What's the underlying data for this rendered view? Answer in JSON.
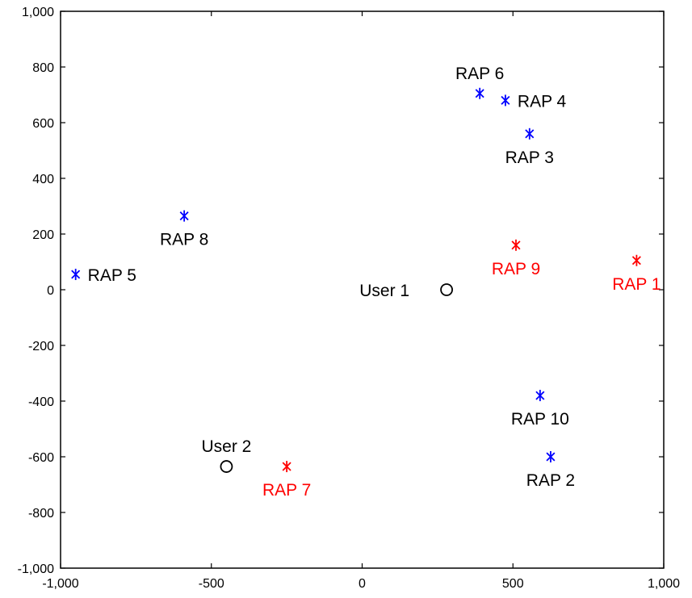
{
  "chart_data": {
    "type": "scatter",
    "title": "",
    "xlabel": "",
    "ylabel": "",
    "xlim": [
      -1000,
      1000
    ],
    "ylim": [
      -1000,
      1000
    ],
    "x_ticks": [
      -1000,
      -500,
      0,
      500,
      1000
    ],
    "y_ticks": [
      -1000,
      -800,
      -600,
      -400,
      -200,
      0,
      200,
      400,
      600,
      800,
      1000
    ],
    "x_tick_labels": [
      "-1,000",
      "-500",
      "0",
      "500",
      "1,000"
    ],
    "y_tick_labels": [
      "-1,000",
      "-800",
      "-600",
      "-400",
      "-200",
      "0",
      "200",
      "400",
      "600",
      "800",
      "1,000"
    ],
    "grid": false,
    "legend": "none",
    "colors": {
      "rap_blue": "#0000ff",
      "rap_red": "#ff0000",
      "user": "#000000"
    },
    "points": [
      {
        "label": "RAP 1",
        "x": 910,
        "y": 105,
        "marker": "asterisk",
        "color": "#ff0000",
        "label_pos": "below"
      },
      {
        "label": "RAP 2",
        "x": 625,
        "y": -600,
        "marker": "asterisk",
        "color": "#0000ff",
        "label_pos": "below"
      },
      {
        "label": "RAP 3",
        "x": 555,
        "y": 560,
        "marker": "asterisk",
        "color": "#0000ff",
        "label_pos": "below"
      },
      {
        "label": "RAP 4",
        "x": 475,
        "y": 680,
        "marker": "asterisk",
        "color": "#0000ff",
        "label_pos": "right"
      },
      {
        "label": "RAP 5",
        "x": -950,
        "y": 55,
        "marker": "asterisk",
        "color": "#0000ff",
        "label_pos": "right"
      },
      {
        "label": "RAP 6",
        "x": 390,
        "y": 705,
        "marker": "asterisk",
        "color": "#0000ff",
        "label_pos": "above"
      },
      {
        "label": "RAP 7",
        "x": -250,
        "y": -635,
        "marker": "asterisk",
        "color": "#ff0000",
        "label_pos": "below"
      },
      {
        "label": "RAP 8",
        "x": -590,
        "y": 265,
        "marker": "asterisk",
        "color": "#0000ff",
        "label_pos": "below"
      },
      {
        "label": "RAP 9",
        "x": 510,
        "y": 160,
        "marker": "asterisk",
        "color": "#ff0000",
        "label_pos": "below"
      },
      {
        "label": "RAP 10",
        "x": 590,
        "y": -380,
        "marker": "asterisk",
        "color": "#0000ff",
        "label_pos": "below"
      },
      {
        "label": "User 1",
        "x": 280,
        "y": 0,
        "marker": "circle",
        "color": "#000000",
        "label_pos": "left"
      },
      {
        "label": "User 2",
        "x": -450,
        "y": -635,
        "marker": "circle",
        "color": "#000000",
        "label_pos": "above"
      }
    ]
  }
}
